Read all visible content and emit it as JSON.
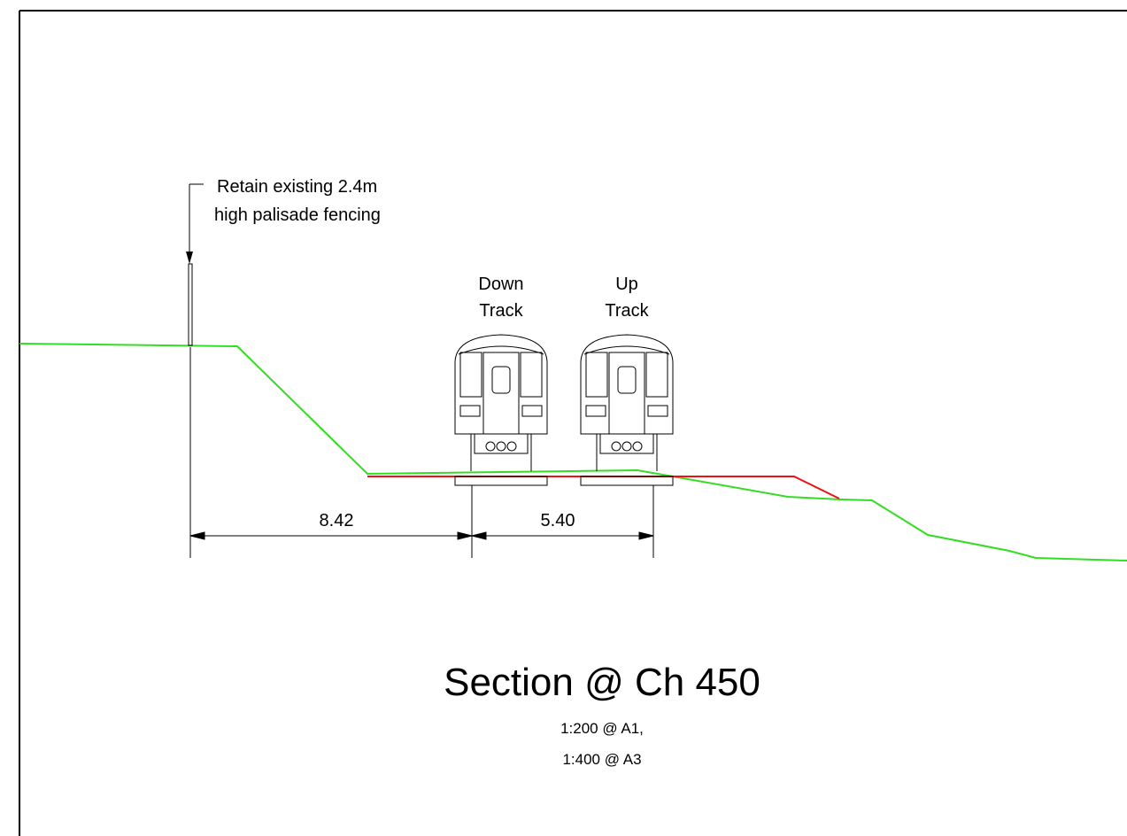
{
  "annotation": {
    "lines": [
      "Retain existing 2.4m",
      "high palisade fencing"
    ]
  },
  "tracks": [
    {
      "lines": [
        "Down",
        "Track"
      ]
    },
    {
      "lines": [
        "Up",
        "Track"
      ]
    }
  ],
  "dimensions": [
    "8.42",
    "5.40"
  ],
  "title": "Section @ Ch 450",
  "scale": [
    "1:200 @ A1,",
    "1:400 @ A3"
  ]
}
